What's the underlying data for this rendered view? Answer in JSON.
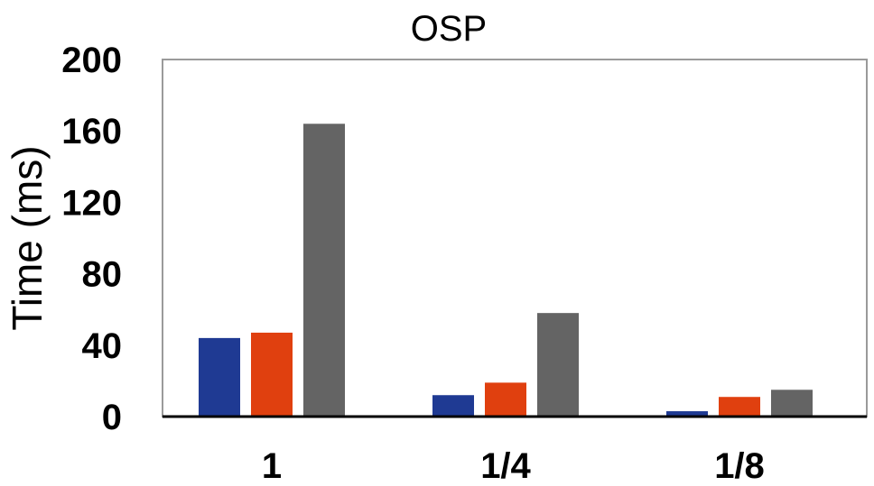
{
  "chart_data": {
    "type": "bar",
    "title": "OSP",
    "xlabel": "",
    "ylabel": "Time (ms)",
    "ylim": [
      0,
      200
    ],
    "yticks": [
      "0",
      "40",
      "80",
      "120",
      "160",
      "200"
    ],
    "categories": [
      "1",
      "1/4",
      "1/8"
    ],
    "series": [
      {
        "values": [
          44,
          12,
          3
        ],
        "color": "#1f3a93"
      },
      {
        "values": [
          47,
          19,
          11
        ],
        "color": "#e0400f"
      },
      {
        "values": [
          164,
          58,
          15
        ],
        "color": "#646464"
      }
    ],
    "grid": false,
    "legend": "none"
  }
}
